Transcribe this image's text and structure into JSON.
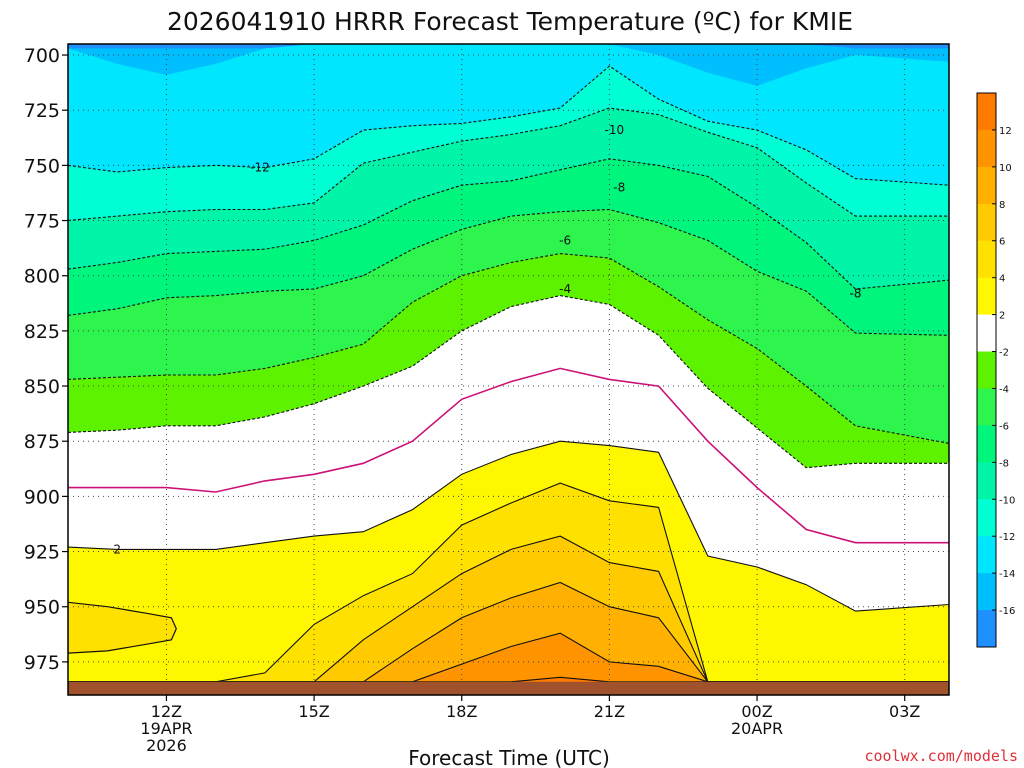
{
  "title": "2026041910 HRRR Forecast Temperature (ºC) for KMIE",
  "credit": "coolwx.com/models",
  "chart_data": {
    "type": "contour",
    "title": "2026041910 HRRR Forecast Temperature (ºC) for KMIE",
    "xlabel": "Forecast Time (UTC)",
    "ylabel": "",
    "x_hours": [
      10,
      11,
      12,
      13,
      14,
      15,
      16,
      17,
      18,
      19,
      20,
      21,
      22,
      23,
      24,
      25,
      26,
      27
    ],
    "xlim": [
      10,
      27.9
    ],
    "ylim": [
      990,
      695
    ],
    "x_ticks": [
      {
        "hour": 12,
        "lines": [
          "12Z",
          "19APR",
          "2026"
        ]
      },
      {
        "hour": 15,
        "lines": [
          "15Z"
        ]
      },
      {
        "hour": 18,
        "lines": [
          "18Z"
        ]
      },
      {
        "hour": 21,
        "lines": [
          "21Z"
        ]
      },
      {
        "hour": 24,
        "lines": [
          "00Z",
          "20APR"
        ]
      },
      {
        "hour": 27,
        "lines": [
          "03Z"
        ]
      }
    ],
    "y_ticks": [
      700,
      725,
      750,
      775,
      800,
      825,
      850,
      875,
      900,
      925,
      950,
      975
    ],
    "surface_pressure_hpa": 984,
    "isotherms": [
      {
        "level": -16,
        "p": [
          697,
          697,
          697,
          697,
          697,
          697,
          695,
          695,
          695,
          695,
          695,
          695,
          695,
          695,
          695,
          695,
          697,
          697
        ]
      },
      {
        "level": -14,
        "p": [
          697,
          704,
          709,
          704,
          697,
          695,
          695,
          695,
          695,
          695,
          695,
          695,
          700,
          708,
          714,
          706,
          700,
          703
        ]
      },
      {
        "level": -12,
        "p": [
          750,
          753,
          751,
          750,
          751,
          747,
          734,
          732,
          731,
          728,
          724,
          705,
          720,
          730,
          734,
          743,
          756,
          759
        ]
      },
      {
        "level": -10,
        "p": [
          775,
          773,
          771,
          770,
          770,
          767,
          749,
          744,
          739,
          736,
          732,
          724,
          727,
          735,
          742,
          758,
          773,
          773
        ]
      },
      {
        "level": -8,
        "p": [
          797,
          794,
          790,
          789,
          788,
          784,
          777,
          766,
          759,
          757,
          752,
          747,
          750,
          755,
          769,
          785,
          806,
          802
        ]
      },
      {
        "level": -6,
        "p": [
          818,
          815,
          810,
          809,
          807,
          806,
          800,
          788,
          779,
          773,
          771,
          770,
          776,
          784,
          798,
          807,
          826,
          827
        ]
      },
      {
        "level": -4,
        "p": [
          847,
          846,
          845,
          845,
          842,
          837,
          831,
          812,
          800,
          794,
          790,
          792,
          805,
          820,
          833,
          850,
          868,
          876
        ]
      },
      {
        "level": -2,
        "p": [
          871,
          870,
          868,
          868,
          864,
          858,
          850,
          841,
          825,
          814,
          809,
          813,
          827,
          851,
          869,
          887,
          885,
          885
        ]
      },
      {
        "level": 0,
        "p": [
          896,
          896,
          896,
          898,
          893,
          890,
          885,
          875,
          856,
          848,
          842,
          847,
          850,
          875,
          896,
          915,
          921,
          921
        ]
      },
      {
        "level": 2,
        "p": [
          923,
          924,
          924,
          924,
          921,
          918,
          916,
          906,
          890,
          881,
          875,
          877,
          880,
          927,
          932,
          940,
          952,
          949
        ]
      },
      {
        "level": 4,
        "p": [
          984,
          984,
          984,
          984,
          980,
          958,
          945,
          935,
          913,
          903,
          894,
          902,
          905,
          984,
          984,
          984,
          984,
          984
        ]
      },
      {
        "level": 6,
        "p": [
          984,
          984,
          984,
          984,
          984,
          984,
          965,
          950,
          935,
          924,
          918,
          930,
          934,
          984,
          984,
          984,
          984,
          984
        ]
      },
      {
        "level": 8,
        "p": [
          984,
          984,
          984,
          984,
          984,
          984,
          984,
          969,
          955,
          946,
          939,
          950,
          955,
          984,
          984,
          984,
          984,
          984
        ]
      },
      {
        "level": 10,
        "p": [
          984,
          984,
          984,
          984,
          984,
          984,
          984,
          984,
          976,
          968,
          962,
          975,
          977,
          984,
          984,
          984,
          984,
          984
        ]
      },
      {
        "level": 12,
        "p": [
          984,
          984,
          984,
          984,
          984,
          984,
          984,
          984,
          984,
          984,
          982,
          984,
          984,
          984,
          984,
          984,
          984,
          984
        ]
      }
    ],
    "warm_pocket": {
      "level": 4,
      "x_hours": [
        10,
        10.8,
        11.6,
        12.1,
        12.2,
        12.1,
        11.6,
        10.8,
        10
      ],
      "p": [
        948,
        950,
        953,
        955,
        960,
        965,
        967,
        970,
        971
      ]
    },
    "contour_labels": [
      {
        "text": "-12",
        "x": 13.9,
        "p": 751
      },
      {
        "text": "-10",
        "x": 21.1,
        "p": 734
      },
      {
        "text": "-8",
        "x": 21.2,
        "p": 760
      },
      {
        "text": "-6",
        "x": 20.1,
        "p": 784
      },
      {
        "text": "-4",
        "x": 20.1,
        "p": 806
      },
      {
        "text": "-8",
        "x": 26.0,
        "p": 808
      },
      {
        "text": "2",
        "x": 11.0,
        "p": 924
      }
    ],
    "colorbar": {
      "bins": [
        {
          "lo": -18,
          "hi": -16,
          "color": "#1e90ff"
        },
        {
          "lo": -16,
          "hi": -14,
          "color": "#00bfff"
        },
        {
          "lo": -14,
          "hi": -12,
          "color": "#00e6ff"
        },
        {
          "lo": -12,
          "hi": -10,
          "color": "#00ffd5"
        },
        {
          "lo": -10,
          "hi": -8,
          "color": "#00f5a8"
        },
        {
          "lo": -8,
          "hi": -6,
          "color": "#00f57c"
        },
        {
          "lo": -6,
          "hi": -4,
          "color": "#2df54d"
        },
        {
          "lo": -4,
          "hi": -2,
          "color": "#5cf200"
        },
        {
          "lo": -2,
          "hi": 2,
          "color": "#ffffff"
        },
        {
          "lo": 2,
          "hi": 4,
          "color": "#fff700"
        },
        {
          "lo": 4,
          "hi": 6,
          "color": "#ffe100"
        },
        {
          "lo": 6,
          "hi": 8,
          "color": "#ffca00"
        },
        {
          "lo": 8,
          "hi": 10,
          "color": "#ffb000"
        },
        {
          "lo": 10,
          "hi": 12,
          "color": "#ff9400"
        },
        {
          "lo": 12,
          "hi": 14,
          "color": "#ff7a00"
        }
      ],
      "tick_labels": [
        "-16",
        "-14",
        "-12",
        "-10",
        "-8",
        "-6",
        "-4",
        "-2",
        "2",
        "4",
        "6",
        "8",
        "10",
        "12"
      ]
    },
    "colors": {
      "ground": "#a0522d",
      "zero_line": "#cc1177",
      "grid": "#444444"
    }
  }
}
